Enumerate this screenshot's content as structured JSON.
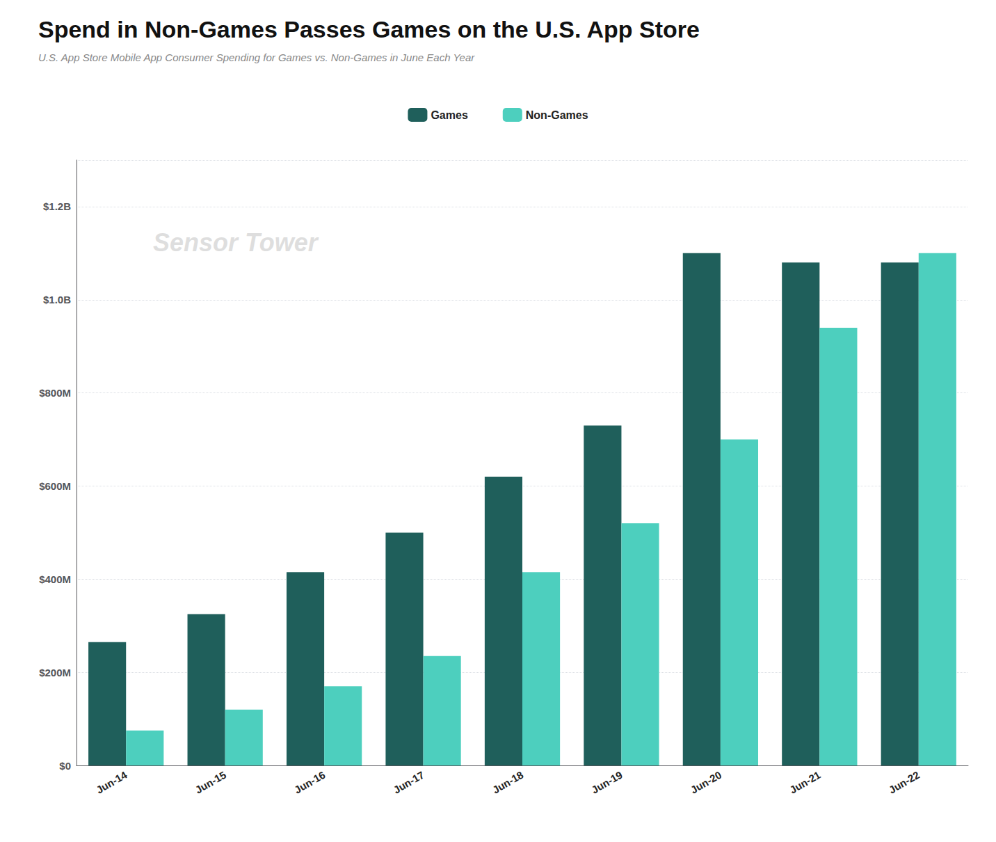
{
  "chart_data": {
    "type": "bar",
    "title": "Spend in Non-Games Passes Games on the U.S. App Store",
    "subtitle": "U.S. App Store Mobile App Consumer Spending for Games vs. Non-Games in June Each Year",
    "categories": [
      "Jun-14",
      "Jun-15",
      "Jun-16",
      "Jun-17",
      "Jun-18",
      "Jun-19",
      "Jun-20",
      "Jun-21",
      "Jun-22"
    ],
    "series": [
      {
        "name": "Games",
        "color": "#1f5f5b",
        "values": [
          265,
          325,
          415,
          500,
          620,
          730,
          1100,
          1080,
          1080
        ]
      },
      {
        "name": "Non-Games",
        "color": "#4dcfbe",
        "values": [
          75,
          120,
          170,
          235,
          415,
          520,
          700,
          940,
          1100
        ]
      }
    ],
    "ylim": [
      0,
      1300
    ],
    "yticks": [
      {
        "value": 0,
        "label": "$0"
      },
      {
        "value": 200,
        "label": "$200M"
      },
      {
        "value": 400,
        "label": "$400M"
      },
      {
        "value": 600,
        "label": "$600M"
      },
      {
        "value": 800,
        "label": "$800M"
      },
      {
        "value": 1000,
        "label": "$1.0B"
      },
      {
        "value": 1200,
        "label": "$1.2B"
      }
    ],
    "grid": true,
    "legend": "top",
    "annotations": [
      "Sensor Tower"
    ]
  }
}
